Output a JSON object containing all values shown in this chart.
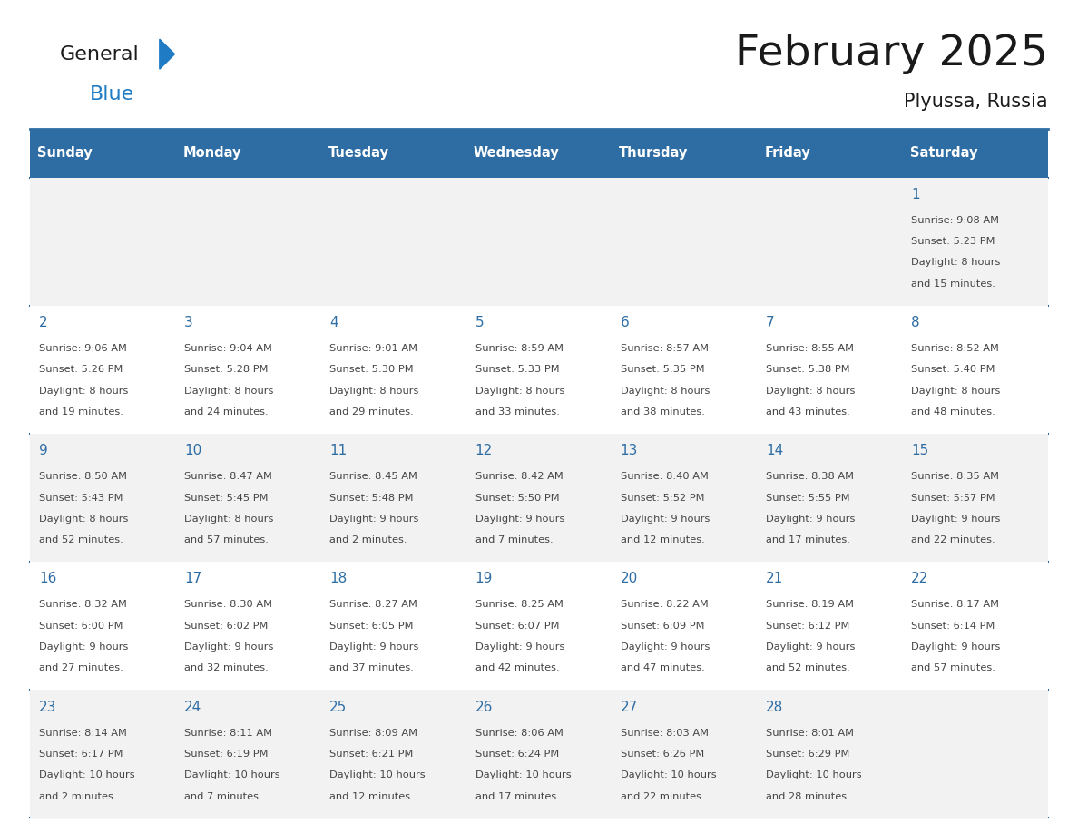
{
  "title": "February 2025",
  "subtitle": "Plyussa, Russia",
  "days_of_week": [
    "Sunday",
    "Monday",
    "Tuesday",
    "Wednesday",
    "Thursday",
    "Friday",
    "Saturday"
  ],
  "header_bg": "#2E6DA4",
  "header_text_color": "#FFFFFF",
  "cell_bg_light": "#F2F2F2",
  "cell_bg_white": "#FFFFFF",
  "cell_border_color": "#2E6DA4",
  "day_number_color": "#2E6DA4",
  "info_text_color": "#444444",
  "title_color": "#1a1a1a",
  "logo_general_color": "#1a1a1a",
  "logo_blue_color": "#1E7BC4",
  "calendar_data": [
    {
      "day": 1,
      "col": 6,
      "row": 0,
      "sunrise": "9:08 AM",
      "sunset": "5:23 PM",
      "daylight": "8 hours and 15 minutes."
    },
    {
      "day": 2,
      "col": 0,
      "row": 1,
      "sunrise": "9:06 AM",
      "sunset": "5:26 PM",
      "daylight": "8 hours and 19 minutes."
    },
    {
      "day": 3,
      "col": 1,
      "row": 1,
      "sunrise": "9:04 AM",
      "sunset": "5:28 PM",
      "daylight": "8 hours and 24 minutes."
    },
    {
      "day": 4,
      "col": 2,
      "row": 1,
      "sunrise": "9:01 AM",
      "sunset": "5:30 PM",
      "daylight": "8 hours and 29 minutes."
    },
    {
      "day": 5,
      "col": 3,
      "row": 1,
      "sunrise": "8:59 AM",
      "sunset": "5:33 PM",
      "daylight": "8 hours and 33 minutes."
    },
    {
      "day": 6,
      "col": 4,
      "row": 1,
      "sunrise": "8:57 AM",
      "sunset": "5:35 PM",
      "daylight": "8 hours and 38 minutes."
    },
    {
      "day": 7,
      "col": 5,
      "row": 1,
      "sunrise": "8:55 AM",
      "sunset": "5:38 PM",
      "daylight": "8 hours and 43 minutes."
    },
    {
      "day": 8,
      "col": 6,
      "row": 1,
      "sunrise": "8:52 AM",
      "sunset": "5:40 PM",
      "daylight": "8 hours and 48 minutes."
    },
    {
      "day": 9,
      "col": 0,
      "row": 2,
      "sunrise": "8:50 AM",
      "sunset": "5:43 PM",
      "daylight": "8 hours and 52 minutes."
    },
    {
      "day": 10,
      "col": 1,
      "row": 2,
      "sunrise": "8:47 AM",
      "sunset": "5:45 PM",
      "daylight": "8 hours and 57 minutes."
    },
    {
      "day": 11,
      "col": 2,
      "row": 2,
      "sunrise": "8:45 AM",
      "sunset": "5:48 PM",
      "daylight": "9 hours and 2 minutes."
    },
    {
      "day": 12,
      "col": 3,
      "row": 2,
      "sunrise": "8:42 AM",
      "sunset": "5:50 PM",
      "daylight": "9 hours and 7 minutes."
    },
    {
      "day": 13,
      "col": 4,
      "row": 2,
      "sunrise": "8:40 AM",
      "sunset": "5:52 PM",
      "daylight": "9 hours and 12 minutes."
    },
    {
      "day": 14,
      "col": 5,
      "row": 2,
      "sunrise": "8:38 AM",
      "sunset": "5:55 PM",
      "daylight": "9 hours and 17 minutes."
    },
    {
      "day": 15,
      "col": 6,
      "row": 2,
      "sunrise": "8:35 AM",
      "sunset": "5:57 PM",
      "daylight": "9 hours and 22 minutes."
    },
    {
      "day": 16,
      "col": 0,
      "row": 3,
      "sunrise": "8:32 AM",
      "sunset": "6:00 PM",
      "daylight": "9 hours and 27 minutes."
    },
    {
      "day": 17,
      "col": 1,
      "row": 3,
      "sunrise": "8:30 AM",
      "sunset": "6:02 PM",
      "daylight": "9 hours and 32 minutes."
    },
    {
      "day": 18,
      "col": 2,
      "row": 3,
      "sunrise": "8:27 AM",
      "sunset": "6:05 PM",
      "daylight": "9 hours and 37 minutes."
    },
    {
      "day": 19,
      "col": 3,
      "row": 3,
      "sunrise": "8:25 AM",
      "sunset": "6:07 PM",
      "daylight": "9 hours and 42 minutes."
    },
    {
      "day": 20,
      "col": 4,
      "row": 3,
      "sunrise": "8:22 AM",
      "sunset": "6:09 PM",
      "daylight": "9 hours and 47 minutes."
    },
    {
      "day": 21,
      "col": 5,
      "row": 3,
      "sunrise": "8:19 AM",
      "sunset": "6:12 PM",
      "daylight": "9 hours and 52 minutes."
    },
    {
      "day": 22,
      "col": 6,
      "row": 3,
      "sunrise": "8:17 AM",
      "sunset": "6:14 PM",
      "daylight": "9 hours and 57 minutes."
    },
    {
      "day": 23,
      "col": 0,
      "row": 4,
      "sunrise": "8:14 AM",
      "sunset": "6:17 PM",
      "daylight": "10 hours and 2 minutes."
    },
    {
      "day": 24,
      "col": 1,
      "row": 4,
      "sunrise": "8:11 AM",
      "sunset": "6:19 PM",
      "daylight": "10 hours and 7 minutes."
    },
    {
      "day": 25,
      "col": 2,
      "row": 4,
      "sunrise": "8:09 AM",
      "sunset": "6:21 PM",
      "daylight": "10 hours and 12 minutes."
    },
    {
      "day": 26,
      "col": 3,
      "row": 4,
      "sunrise": "8:06 AM",
      "sunset": "6:24 PM",
      "daylight": "10 hours and 17 minutes."
    },
    {
      "day": 27,
      "col": 4,
      "row": 4,
      "sunrise": "8:03 AM",
      "sunset": "6:26 PM",
      "daylight": "10 hours and 22 minutes."
    },
    {
      "day": 28,
      "col": 5,
      "row": 4,
      "sunrise": "8:01 AM",
      "sunset": "6:29 PM",
      "daylight": "10 hours and 28 minutes."
    }
  ]
}
